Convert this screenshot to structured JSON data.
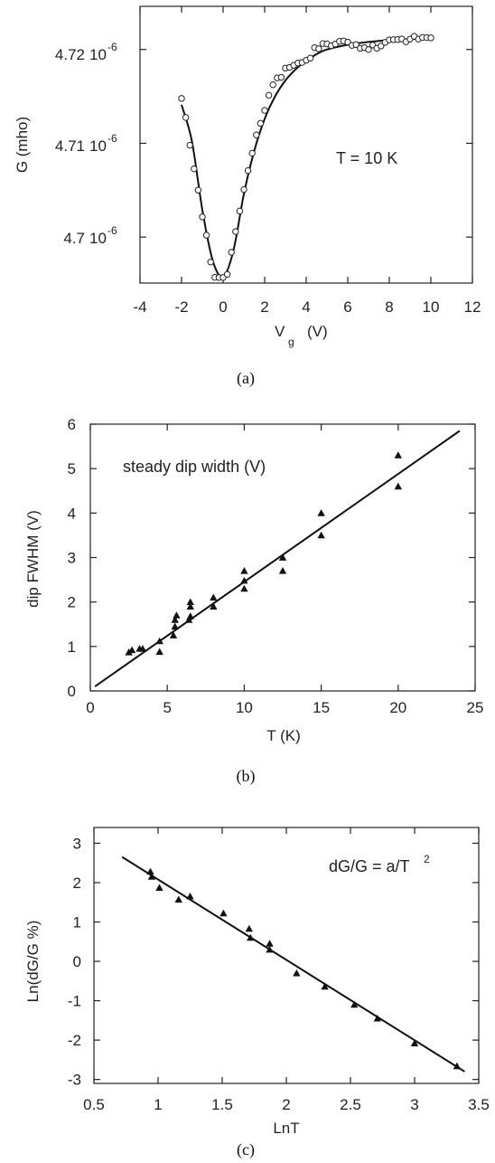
{
  "chart_data": [
    {
      "type": "scatter",
      "panel_label": "(a)",
      "xlabel_main": "V",
      "xlabel_sub": "g",
      "xlabel_unit": "(V)",
      "ylabel": "G (mho)",
      "annotation": "T = 10 K",
      "xlim": [
        -4,
        12
      ],
      "ylim": [
        4.6951e-06,
        4.7246e-06
      ],
      "x_ticks": [
        -4,
        -2,
        0,
        2,
        4,
        6,
        8,
        10,
        12
      ],
      "x_tick_labels": [
        "-4",
        "-2",
        "0",
        "2",
        "4",
        "6",
        "8",
        "10",
        "12"
      ],
      "y_ticks": [
        4.7e-06,
        4.71e-06,
        4.72e-06
      ],
      "y_tick_mantissa": [
        "4.7",
        "4.71",
        "4.72"
      ],
      "y_tick_exp_base": "10",
      "y_tick_exp": "-6",
      "points": [
        [
          -2.0,
          4.71478e-06
        ],
        [
          -1.8,
          4.71275e-06
        ],
        [
          -1.6,
          4.7098e-06
        ],
        [
          -1.4,
          4.70728e-06
        ],
        [
          -1.2,
          4.70501e-06
        ],
        [
          -1.0,
          4.70215e-06
        ],
        [
          -0.8,
          4.7002e-06
        ],
        [
          -0.6,
          4.69734e-06
        ],
        [
          -0.4,
          4.69571e-06
        ],
        [
          -0.2,
          4.69569e-06
        ],
        [
          0.0,
          4.69569e-06
        ],
        [
          0.2,
          4.69603e-06
        ],
        [
          0.4,
          4.69838e-06
        ],
        [
          0.6,
          4.70059e-06
        ],
        [
          0.8,
          4.70278e-06
        ],
        [
          1.0,
          4.70507e-06
        ],
        [
          1.2,
          4.70709e-06
        ],
        [
          1.4,
          4.70894e-06
        ],
        [
          1.6,
          4.71089e-06
        ],
        [
          1.8,
          4.71213e-06
        ],
        [
          2.0,
          4.71351e-06
        ],
        [
          2.2,
          4.71512e-06
        ],
        [
          2.4,
          4.71624e-06
        ],
        [
          2.6,
          4.71697e-06
        ],
        [
          2.8,
          4.71703e-06
        ],
        [
          3.0,
          4.71801e-06
        ],
        [
          3.2,
          4.71809e-06
        ],
        [
          3.4,
          4.71831e-06
        ],
        [
          3.6,
          4.71855e-06
        ],
        [
          3.8,
          4.71862e-06
        ],
        [
          4.0,
          4.71885e-06
        ],
        [
          4.2,
          4.71908e-06
        ],
        [
          4.4,
          4.7202e-06
        ],
        [
          4.6,
          4.72007e-06
        ],
        [
          4.8,
          4.72063e-06
        ],
        [
          5.0,
          4.72059e-06
        ],
        [
          5.2,
          4.7204e-06
        ],
        [
          5.4,
          4.72058e-06
        ],
        [
          5.6,
          4.72087e-06
        ],
        [
          5.8,
          4.72091e-06
        ],
        [
          6.0,
          4.72079e-06
        ],
        [
          6.2,
          4.72043e-06
        ],
        [
          6.4,
          4.72052e-06
        ],
        [
          6.6,
          4.72012e-06
        ],
        [
          6.8,
          4.7202e-06
        ],
        [
          7.0,
          4.71999e-06
        ],
        [
          7.2,
          4.72047e-06
        ],
        [
          7.4,
          4.72013e-06
        ],
        [
          7.6,
          4.72037e-06
        ],
        [
          7.8,
          4.72076e-06
        ],
        [
          8.0,
          4.72103e-06
        ],
        [
          8.2,
          4.72105e-06
        ],
        [
          8.4,
          4.72106e-06
        ],
        [
          8.6,
          4.72112e-06
        ],
        [
          8.8,
          4.72082e-06
        ],
        [
          9.0,
          4.72111e-06
        ],
        [
          9.2,
          4.7214e-06
        ],
        [
          9.4,
          4.7211e-06
        ],
        [
          9.6,
          4.72128e-06
        ],
        [
          9.8,
          4.72127e-06
        ],
        [
          10.0,
          4.72124e-06
        ]
      ],
      "fit_curve": {
        "x": [
          -2,
          -1.5,
          -1,
          -0.5,
          0,
          0.5,
          1,
          1.5,
          2,
          2.5,
          3,
          3.5,
          4,
          4.5,
          5,
          6,
          7,
          8,
          9,
          10
        ],
        "y": [
          4.7141e-06,
          4.7102e-06,
          4.7029e-06,
          4.6975e-06,
          4.69575e-06,
          4.6986e-06,
          4.7046e-06,
          4.7092e-06,
          4.7126e-06,
          4.715e-06,
          4.7167e-06,
          4.7179e-06,
          4.7188e-06,
          4.7195e-06,
          4.72e-06,
          4.7205e-06,
          4.7208e-06,
          4.721e-06,
          4.7211e-06,
          4.7212e-06
        ]
      }
    },
    {
      "type": "scatter",
      "panel_label": "(b)",
      "xlabel": "T (K)",
      "ylabel": "dip FWHM (V)",
      "annotation": "steady dip width (V)",
      "xlim": [
        0,
        25
      ],
      "ylim": [
        0,
        6
      ],
      "x_ticks": [
        0,
        5,
        10,
        15,
        20,
        25
      ],
      "x_tick_labels": [
        "0",
        "5",
        "10",
        "15",
        "20",
        "25"
      ],
      "y_ticks": [
        0,
        1,
        2,
        3,
        4,
        5,
        6
      ],
      "y_tick_labels": [
        "0",
        "1",
        "2",
        "3",
        "4",
        "5",
        "6"
      ],
      "points": [
        [
          2.5,
          0.87
        ],
        [
          2.7,
          0.92
        ],
        [
          3.2,
          0.95
        ],
        [
          3.4,
          0.95
        ],
        [
          4.5,
          0.88
        ],
        [
          4.5,
          1.12
        ],
        [
          5.4,
          1.25
        ],
        [
          5.5,
          1.45
        ],
        [
          5.5,
          1.6
        ],
        [
          5.6,
          1.7
        ],
        [
          6.4,
          1.6
        ],
        [
          6.5,
          1.68
        ],
        [
          6.5,
          1.9
        ],
        [
          6.5,
          2.0
        ],
        [
          8.0,
          1.9
        ],
        [
          8.0,
          2.1
        ],
        [
          10.0,
          2.3
        ],
        [
          10.0,
          2.48
        ],
        [
          10.0,
          2.7
        ],
        [
          12.5,
          2.7
        ],
        [
          12.5,
          3.0
        ],
        [
          15.0,
          3.5
        ],
        [
          15.0,
          4.0
        ],
        [
          20.0,
          4.6
        ],
        [
          20.0,
          5.3
        ]
      ],
      "fit_line": {
        "x": [
          0.3,
          24
        ],
        "y": [
          0.1,
          5.85
        ]
      }
    },
    {
      "type": "scatter",
      "panel_label": "(c)",
      "xlabel": "LnT",
      "ylabel": "Ln(dG/G %)",
      "annotation_text": "dG/G = a/T",
      "annotation_sup": "2",
      "xlim": [
        0.5,
        3.5
      ],
      "ylim": [
        -3.1,
        3.4
      ],
      "x_ticks": [
        0.5,
        1,
        1.5,
        2,
        2.5,
        3,
        3.5
      ],
      "x_tick_labels": [
        "0.5",
        "1",
        "1.5",
        "2",
        "2.5",
        "3",
        "3.5"
      ],
      "y_ticks": [
        -3,
        -2,
        -1,
        0,
        1,
        2,
        3
      ],
      "y_tick_labels": [
        "-3",
        "-2",
        "-1",
        "0",
        "1",
        "2",
        "3"
      ],
      "points": [
        [
          0.94,
          2.28
        ],
        [
          0.95,
          2.15
        ],
        [
          1.01,
          1.87
        ],
        [
          1.16,
          1.57
        ],
        [
          1.25,
          1.65
        ],
        [
          1.51,
          1.22
        ],
        [
          1.71,
          0.83
        ],
        [
          1.72,
          0.6
        ],
        [
          1.87,
          0.45
        ],
        [
          1.87,
          0.3
        ],
        [
          2.08,
          -0.3
        ],
        [
          2.3,
          -0.64
        ],
        [
          2.53,
          -1.1
        ],
        [
          2.71,
          -1.45
        ],
        [
          3.0,
          -2.08
        ],
        [
          3.33,
          -2.66
        ]
      ],
      "fit_line": {
        "x": [
          0.72,
          3.39
        ],
        "y": [
          2.65,
          -2.8
        ]
      }
    }
  ]
}
